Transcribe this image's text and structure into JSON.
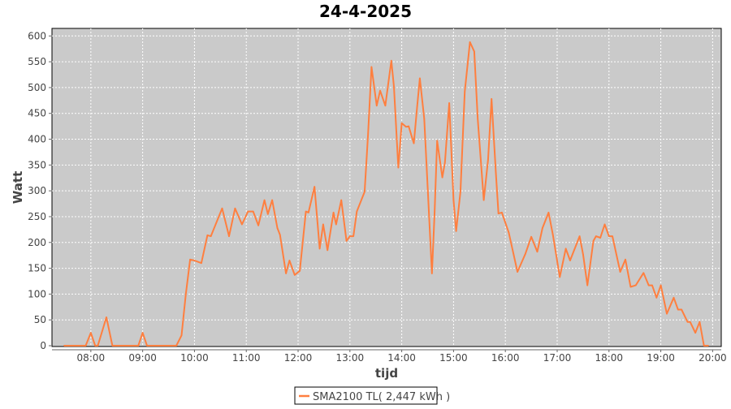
{
  "chart_data": {
    "type": "line",
    "title": "24-4-2025",
    "xlabel": "tijd",
    "ylabel": "Watt",
    "xlim": [
      "07:15",
      "20:10"
    ],
    "ylim": [
      0,
      600
    ],
    "grid": true,
    "legend_position": "bottom",
    "x_ticks": [
      "08:00",
      "09:00",
      "10:00",
      "11:00",
      "12:00",
      "13:00",
      "14:00",
      "15:00",
      "16:00",
      "17:00",
      "18:00",
      "19:00",
      "20:00"
    ],
    "y_ticks": [
      0,
      50,
      100,
      150,
      200,
      250,
      300,
      350,
      400,
      450,
      500,
      550,
      600
    ],
    "colors": {
      "plot_background": "#cacaca",
      "series": "#ff7f3f",
      "grid": "#ffffff"
    },
    "series": [
      {
        "name": "SMA2100 TL( 2,447 kWh )",
        "x": [
          "07:29",
          "07:54",
          "08:00",
          "08:05",
          "08:08",
          "08:18",
          "08:25",
          "08:55",
          "09:00",
          "09:05",
          "09:39",
          "09:45",
          "09:50",
          "09:55",
          "10:00",
          "10:08",
          "10:15",
          "10:19",
          "10:32",
          "10:40",
          "10:47",
          "10:55",
          "11:02",
          "11:08",
          "11:14",
          "11:21",
          "11:25",
          "11:30",
          "11:36",
          "11:39",
          "11:46",
          "11:50",
          "11:56",
          "12:02",
          "12:09",
          "12:12",
          "12:19",
          "12:25",
          "12:29",
          "12:34",
          "12:41",
          "12:44",
          "12:50",
          "12:56",
          "13:00",
          "13:04",
          "13:08",
          "13:17",
          "13:21",
          "13:25",
          "13:31",
          "13:35",
          "13:41",
          "13:48",
          "13:51",
          "13:56",
          "14:00",
          "14:05",
          "14:08",
          "14:14",
          "14:18",
          "14:21",
          "14:26",
          "14:30",
          "14:35",
          "14:38",
          "14:41",
          "14:47",
          "14:50",
          "14:55",
          "15:00",
          "15:03",
          "15:08",
          "15:13",
          "15:19",
          "15:24",
          "15:28",
          "15:35",
          "15:40",
          "15:44",
          "15:49",
          "15:52",
          "15:56",
          "16:04",
          "16:14",
          "16:23",
          "16:30",
          "16:37",
          "16:43",
          "16:50",
          "16:55",
          "17:03",
          "17:10",
          "17:15",
          "17:26",
          "17:30",
          "17:35",
          "17:42",
          "17:45",
          "17:50",
          "17:55",
          "18:00",
          "18:04",
          "18:13",
          "18:19",
          "18:25",
          "18:31",
          "18:40",
          "18:46",
          "18:50",
          "18:55",
          "19:00",
          "19:07",
          "19:15",
          "19:20",
          "19:24",
          "19:31",
          "19:34",
          "19:40",
          "19:45",
          "19:50",
          "19:55"
        ],
        "values": [
          0,
          0,
          25,
          0,
          0,
          55,
          0,
          0,
          25,
          0,
          0,
          20,
          100,
          167,
          165,
          160,
          214,
          212,
          266,
          212,
          266,
          235,
          260,
          260,
          233,
          282,
          255,
          282,
          228,
          215,
          140,
          165,
          137,
          145,
          260,
          258,
          308,
          188,
          235,
          185,
          258,
          235,
          282,
          203,
          212,
          212,
          260,
          298,
          408,
          540,
          465,
          494,
          465,
          552,
          502,
          345,
          431,
          424,
          425,
          392,
          465,
          518,
          440,
          308,
          140,
          255,
          397,
          326,
          355,
          470,
          282,
          222,
          298,
          492,
          588,
          570,
          439,
          282,
          360,
          478,
          335,
          256,
          258,
          219,
          143,
          177,
          211,
          182,
          228,
          258,
          215,
          133,
          188,
          165,
          212,
          177,
          117,
          203,
          212,
          209,
          235,
          212,
          212,
          143,
          167,
          114,
          117,
          141,
          117,
          117,
          93,
          117,
          62,
          93,
          70,
          70,
          46,
          46,
          25,
          46,
          0,
          0
        ]
      }
    ]
  }
}
